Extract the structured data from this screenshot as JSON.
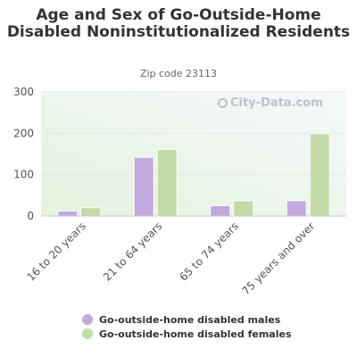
{
  "chart_data": {
    "type": "bar",
    "title": "Age and Sex of Go-Outside-Home Disabled Noninstitutionalized Residents",
    "subtitle": "Zip code 23113",
    "watermark": "City-Data.com",
    "categories": [
      "16 to 20 years",
      "21 to 64 years",
      "65 to 74 years",
      "75 years and over"
    ],
    "series": [
      {
        "name": "Go-outside-home disabled males",
        "color": "#c1a9dd",
        "values": [
          12,
          142,
          25,
          37
        ]
      },
      {
        "name": "Go-outside-home disabled females",
        "color": "#c4dba8",
        "values": [
          20,
          161,
          37,
          199
        ]
      }
    ],
    "ylim": [
      0,
      300
    ],
    "yticks": [
      0,
      100,
      200,
      300
    ],
    "grid": true,
    "legend_position": "bottom"
  }
}
